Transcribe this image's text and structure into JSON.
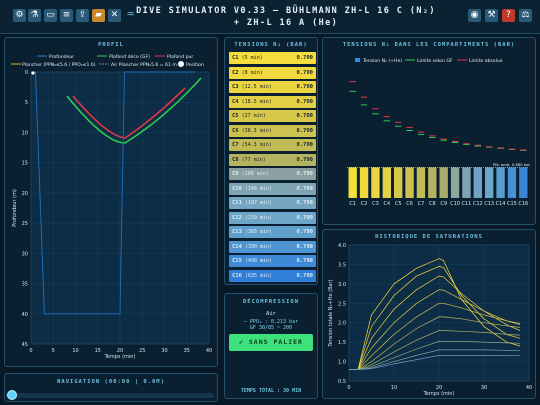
{
  "toolbar": {
    "icons": [
      "settings-icon",
      "microscope-icon",
      "dive-card-icon",
      "notes-icon",
      "export-icon",
      "folder-icon",
      "mute-icon",
      "diver-icon"
    ],
    "right_icons": [
      "gamepad-icon",
      "wrench-icon",
      "help-icon",
      "balance-icon"
    ]
  },
  "title": "DIVE SIMULATOR V0.33 — BÜHLMANN ZH-L 16 C (N₂) + ZH-L 16 A (He)",
  "profile": {
    "title": "PROFIL",
    "legend": [
      "Profondeur",
      "Plafond déco (GF)",
      "Plafond pur",
      "Plancher (PPN₂≤5.6 / PPO₂≤1.6)",
      "Air Plancher PPN₂5.6 = 61 m",
      "Position"
    ],
    "xlabel": "Temps (min)",
    "ylabel": "Profondeur (m)",
    "xticks": [
      "0",
      "5",
      "10",
      "15",
      "20",
      "25",
      "30",
      "35",
      "40"
    ],
    "yticks": [
      "0",
      "5",
      "10",
      "15",
      "20",
      "25",
      "30",
      "35",
      "40",
      "45"
    ]
  },
  "tissues": {
    "title": "TENSIONS N₂ (BAR)",
    "items": [
      {
        "id": "C1",
        "half": "(5 min)",
        "value": "0.790"
      },
      {
        "id": "C2",
        "half": "(8 min)",
        "value": "0.790"
      },
      {
        "id": "C3",
        "half": "(12.5 min)",
        "value": "0.790"
      },
      {
        "id": "C4",
        "half": "(18.5 min)",
        "value": "0.790"
      },
      {
        "id": "C5",
        "half": "(27 min)",
        "value": "0.790"
      },
      {
        "id": "C6",
        "half": "(38.3 min)",
        "value": "0.790"
      },
      {
        "id": "C7",
        "half": "(54.3 min)",
        "value": "0.790"
      },
      {
        "id": "C8",
        "half": "(77 min)",
        "value": "0.790"
      },
      {
        "id": "C9",
        "half": "(109 min)",
        "value": "0.790"
      },
      {
        "id": "C10",
        "half": "(146 min)",
        "value": "0.790"
      },
      {
        "id": "C11",
        "half": "(187 min)",
        "value": "0.790"
      },
      {
        "id": "C12",
        "half": "(239 min)",
        "value": "0.790"
      },
      {
        "id": "C13",
        "half": "(305 min)",
        "value": "0.790"
      },
      {
        "id": "C14",
        "half": "(390 min)",
        "value": "0.790"
      },
      {
        "id": "C15",
        "half": "(498 min)",
        "value": "0.790"
      },
      {
        "id": "C16",
        "half": "(635 min)",
        "value": "0.790"
      }
    ]
  },
  "deco": {
    "title": "DÉCOMPRESSION",
    "gas": "Air",
    "ppo2": "— PPO₂ : 0.213 bar",
    "gf": "GF 30/85 ~ 200",
    "button": "SANS PALIER",
    "total": "TEMPS TOTAL : 30 MIN"
  },
  "compartments": {
    "title": "TENSIONS N₂ DANS LES COMPARTIMENTS (BAR)",
    "legend": [
      "Tension N₂ (+He)",
      "Limite selon GF",
      "Limite absolue"
    ],
    "annotation": "PN₂ amb. 0.680 bar",
    "categories": [
      "C1",
      "C2",
      "C3",
      "C4",
      "C5",
      "C6",
      "C7",
      "C8",
      "C9",
      "C10",
      "C11",
      "C12",
      "C13",
      "C14",
      "C15",
      "C16"
    ]
  },
  "saturation": {
    "title": "HISTORIQUE DE SATURATIONS",
    "xlabel": "Temps (min)",
    "ylabel": "Tension totale N₂+He (Bar)",
    "xticks": [
      "0",
      "10",
      "20",
      "30",
      "40"
    ],
    "yticks": [
      "0.5",
      "1.0",
      "1.5",
      "2.0",
      "2.5",
      "3.0",
      "3.5",
      "4.0"
    ]
  },
  "navigation": {
    "title": "NAVIGATION (00:00 | 0.0M)",
    "position": 0.0
  },
  "chart_data": [
    {
      "type": "line",
      "title": "PROFIL",
      "x": [
        0,
        1,
        3,
        20,
        21,
        25,
        37
      ],
      "series": [
        {
          "name": "Profondeur",
          "values": [
            0,
            0,
            40,
            40,
            0,
            0,
            0
          ]
        }
      ],
      "xlim": [
        0,
        40
      ],
      "ylim": [
        45,
        0
      ]
    },
    {
      "type": "bar",
      "title": "TENSIONS N₂ DANS LES COMPARTIMENTS (BAR)",
      "categories": [
        "C1",
        "C2",
        "C3",
        "C4",
        "C5",
        "C6",
        "C7",
        "C8",
        "C9",
        "C10",
        "C11",
        "C12",
        "C13",
        "C14",
        "C15",
        "C16"
      ],
      "series": [
        {
          "name": "Tension N₂ (+He)",
          "values": [
            0.79,
            0.79,
            0.79,
            0.79,
            0.79,
            0.79,
            0.79,
            0.79,
            0.79,
            0.79,
            0.79,
            0.79,
            0.79,
            0.79,
            0.79,
            0.79
          ]
        },
        {
          "name": "Limite selon GF",
          "values": [
            2.75,
            2.4,
            2.17,
            1.99,
            1.85,
            1.74,
            1.64,
            1.56,
            1.49,
            1.43,
            1.38,
            1.34,
            1.31,
            1.28,
            1.25,
            1.23
          ]
        },
        {
          "name": "Limite absolue",
          "values": [
            3.0,
            2.6,
            2.3,
            2.1,
            1.95,
            1.82,
            1.7,
            1.6,
            1.52,
            1.46,
            1.4,
            1.36,
            1.32,
            1.29,
            1.26,
            1.24
          ]
        }
      ],
      "ylim": [
        0,
        3.3
      ]
    },
    {
      "type": "line",
      "title": "HISTORIQUE DE SATURATIONS",
      "xlim": [
        0,
        40
      ],
      "ylim": [
        0.5,
        4.0
      ],
      "x": [
        0,
        2,
        5,
        10,
        15,
        20,
        21,
        25,
        30,
        35,
        38
      ],
      "series": [
        {
          "values": [
            0.79,
            0.79,
            2.2,
            3.0,
            3.4,
            3.65,
            3.6,
            2.6,
            1.9,
            1.5,
            1.4
          ]
        },
        {
          "values": [
            0.79,
            0.79,
            1.9,
            2.7,
            3.2,
            3.45,
            3.42,
            2.7,
            2.1,
            1.7,
            1.6
          ]
        },
        {
          "values": [
            0.79,
            0.79,
            1.6,
            2.35,
            2.85,
            3.2,
            3.18,
            2.75,
            2.3,
            1.95,
            1.8
          ]
        },
        {
          "values": [
            0.79,
            0.79,
            1.35,
            2.0,
            2.5,
            2.85,
            2.84,
            2.6,
            2.3,
            2.05,
            1.95
          ]
        },
        {
          "values": [
            0.79,
            0.79,
            1.15,
            1.7,
            2.15,
            2.5,
            2.5,
            2.38,
            2.2,
            2.05,
            1.98
          ]
        },
        {
          "values": [
            0.79,
            0.79,
            1.0,
            1.45,
            1.85,
            2.15,
            2.15,
            2.1,
            2.0,
            1.92,
            1.88
          ]
        },
        {
          "values": [
            0.79,
            0.79,
            0.92,
            1.25,
            1.55,
            1.8,
            1.8,
            1.78,
            1.75,
            1.7,
            1.68
          ]
        },
        {
          "values": [
            0.79,
            0.79,
            0.87,
            1.1,
            1.32,
            1.52,
            1.52,
            1.52,
            1.5,
            1.48,
            1.47
          ]
        },
        {
          "values": [
            0.79,
            0.79,
            0.84,
            1.0,
            1.16,
            1.3,
            1.3,
            1.3,
            1.3,
            1.29,
            1.28
          ]
        },
        {
          "values": [
            0.79,
            0.79,
            0.82,
            0.94,
            1.05,
            1.16,
            1.16,
            1.16,
            1.16,
            1.16,
            1.15
          ]
        }
      ]
    }
  ]
}
